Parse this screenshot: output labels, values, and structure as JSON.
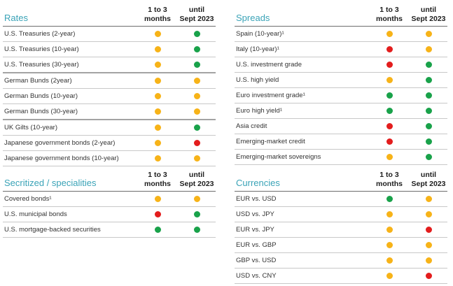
{
  "colors": {
    "title": "#3aa3b7",
    "yellow": "#f7b318",
    "green": "#19a24a",
    "red": "#e31d1d"
  },
  "columns": {
    "c1_line1": "1 to 3",
    "c1_line2": "months",
    "c2_line1": "until",
    "c2_line2": "Sept 2023"
  },
  "rates": {
    "title": "Rates",
    "rows": [
      {
        "label": "U.S. Treasuries (2-year)",
        "a": "yellow",
        "b": "green"
      },
      {
        "label": "U.S. Treasuries (10-year)",
        "a": "yellow",
        "b": "green"
      },
      {
        "label": "U.S. Treasuries (30-year)",
        "a": "yellow",
        "b": "green"
      },
      {
        "label": "German Bunds (2year)",
        "a": "yellow",
        "b": "yellow"
      },
      {
        "label": "German Bunds (10-year)",
        "a": "yellow",
        "b": "yellow"
      },
      {
        "label": "German Bunds (30-year)",
        "a": "yellow",
        "b": "yellow"
      },
      {
        "label": "UK Gilts (10-year)",
        "a": "yellow",
        "b": "green"
      },
      {
        "label": "Japanese government bonds (2-year)",
        "a": "yellow",
        "b": "red"
      },
      {
        "label": "Japanese government bonds (10-year)",
        "a": "yellow",
        "b": "yellow"
      }
    ]
  },
  "spreads": {
    "title": "Spreads",
    "rows": [
      {
        "label": "Spain (10-year)¹",
        "a": "yellow",
        "b": "yellow"
      },
      {
        "label": "Italy (10-year)¹",
        "a": "red",
        "b": "yellow"
      },
      {
        "label": "U.S. investment grade",
        "a": "red",
        "b": "green"
      },
      {
        "label": "U.S. high yield",
        "a": "yellow",
        "b": "green"
      },
      {
        "label": "Euro investment grade¹",
        "a": "green",
        "b": "green"
      },
      {
        "label": "Euro high yield¹",
        "a": "green",
        "b": "green"
      },
      {
        "label": "Asia credit",
        "a": "red",
        "b": "green"
      },
      {
        "label": "Emerging-market credit",
        "a": "red",
        "b": "green"
      },
      {
        "label": "Emerging-market sovereigns",
        "a": "yellow",
        "b": "green"
      }
    ]
  },
  "securitized": {
    "title": "Secritized / specialities",
    "rows": [
      {
        "label": "Covered bonds¹",
        "a": "yellow",
        "b": "yellow"
      },
      {
        "label": "U.S. municipal bonds",
        "a": "red",
        "b": "green"
      },
      {
        "label": "U.S. mortgage-backed securities",
        "a": "green",
        "b": "green"
      }
    ]
  },
  "currencies": {
    "title": "Currencies",
    "rows": [
      {
        "label": "EUR vs. USD",
        "a": "green",
        "b": "yellow"
      },
      {
        "label": "USD vs. JPY",
        "a": "yellow",
        "b": "yellow"
      },
      {
        "label": "EUR vs. JPY",
        "a": "yellow",
        "b": "red"
      },
      {
        "label": "EUR vs. GBP",
        "a": "yellow",
        "b": "yellow"
      },
      {
        "label": "GBP vs. USD",
        "a": "yellow",
        "b": "yellow"
      },
      {
        "label": "USD vs. CNY",
        "a": "yellow",
        "b": "red"
      }
    ]
  }
}
